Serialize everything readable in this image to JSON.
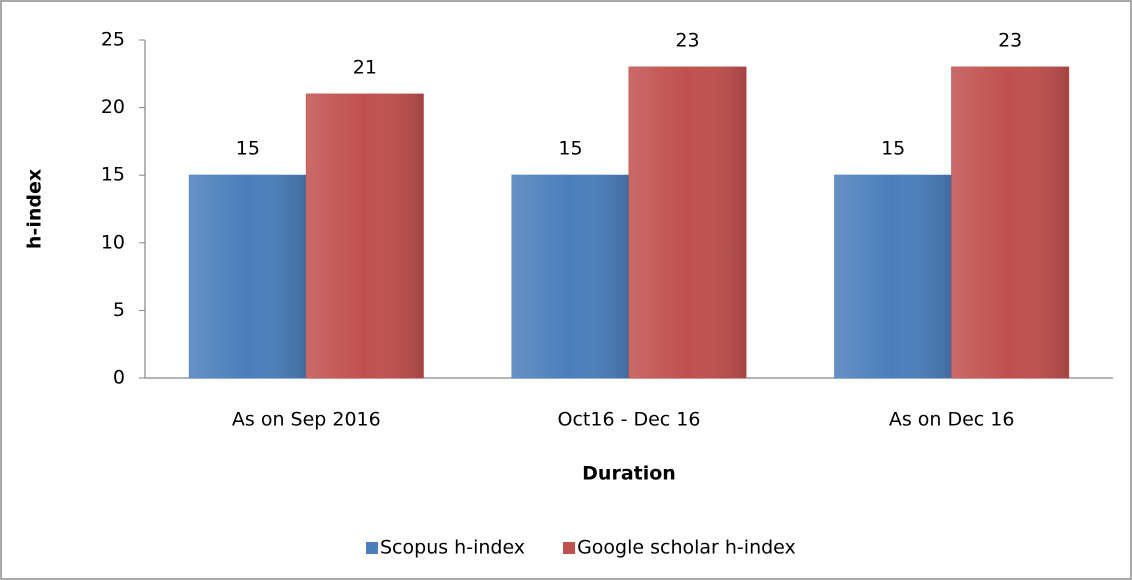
{
  "chart_data": {
    "type": "bar",
    "x_label": "Duration",
    "y_label": "h-index",
    "categories": [
      "As on Sep 2016",
      "Oct16 - Dec 16",
      "As on Dec 16"
    ],
    "series": [
      {
        "name": "Scopus h-index",
        "color": "#4a7ebb",
        "values": [
          15,
          15,
          15
        ]
      },
      {
        "name": "Google scholar h-index",
        "color": "#c0504d",
        "values": [
          21,
          23,
          23
        ]
      }
    ],
    "ylim": [
      0,
      25
    ],
    "yticks": [
      0,
      5,
      10,
      15,
      20,
      25
    ],
    "grid": false,
    "legend": "bottom"
  }
}
